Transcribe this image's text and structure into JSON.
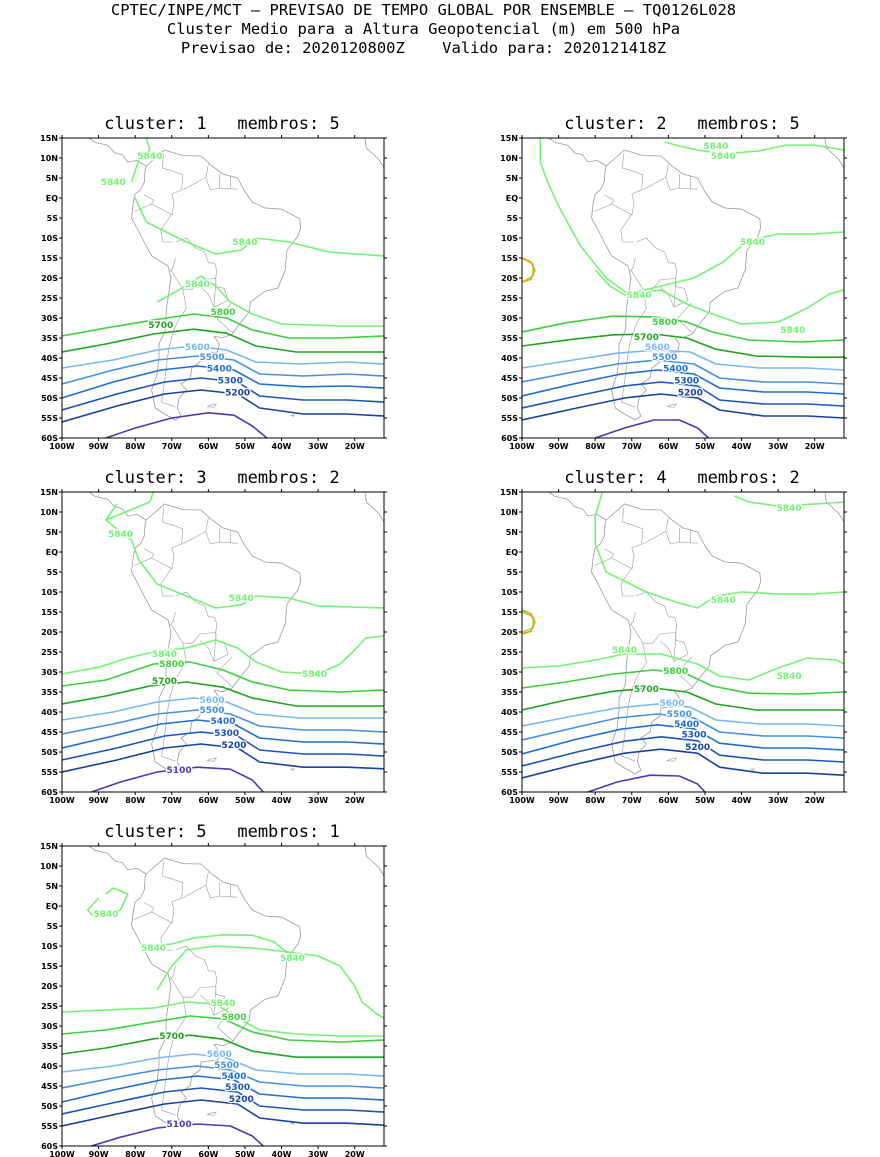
{
  "header": {
    "line1": "CPTEC/INPE/MCT — PREVISAO DE TEMPO GLOBAL POR ENSEMBLE — TQ0126L028",
    "line2": "Cluster Medio para a Altura Geopotencial (m) em 500 hPa",
    "line3": "Previsao de: 2020120800Z    Valido para: 2020121418Z"
  },
  "axes": {
    "lat_labels": [
      "15N",
      "10N",
      "5N",
      "EQ",
      "5S",
      "10S",
      "15S",
      "20S",
      "25S",
      "30S",
      "35S",
      "40S",
      "45S",
      "50S",
      "55S",
      "60S"
    ],
    "lon_labels": [
      "100W",
      "90W",
      "80W",
      "70W",
      "60W",
      "50W",
      "40W",
      "30W",
      "20W"
    ]
  },
  "colors": {
    "c5840": "#73f373",
    "c5800": "#3ccf3c",
    "c5700": "#1da51d",
    "c5600": "#78b8f0",
    "c5500": "#4690e6",
    "c5400": "#1e6ed2",
    "c5300": "#1a55b8",
    "c5200": "#1840a0",
    "c5100": "#5038b4",
    "warm": "#f5a00a",
    "land": "#9a9a9a"
  },
  "panels": [
    {
      "title": "cluster: 1   membros: 5",
      "labels": [
        "5840",
        "5840",
        "5840",
        "5840",
        "5800",
        "5700",
        "5600",
        "5500",
        "5400",
        "5300",
        "5200"
      ]
    },
    {
      "title": "cluster: 2   membros: 5",
      "labels": [
        "5840",
        "5840",
        "5840",
        "5840",
        "5840",
        "5800",
        "5700",
        "5600",
        "5500",
        "5400",
        "5300",
        "5200"
      ]
    },
    {
      "title": "cluster: 3   membros: 2",
      "labels": [
        "5840",
        "5840",
        "5840",
        "5840",
        "5800",
        "5700",
        "5600",
        "5500",
        "5400",
        "5300",
        "5200",
        "5100"
      ]
    },
    {
      "title": "cluster: 4   membros: 2",
      "labels": [
        "5840",
        "5840",
        "5840",
        "5840",
        "5800",
        "5700",
        "5600",
        "5500",
        "5400",
        "5300",
        "5200"
      ]
    },
    {
      "title": "cluster: 5   membros: 1",
      "labels": [
        "5840",
        "5840",
        "5840",
        "5840",
        "5800",
        "5700",
        "5600",
        "5500",
        "5400",
        "5300",
        "5200",
        "5100"
      ]
    }
  ]
}
